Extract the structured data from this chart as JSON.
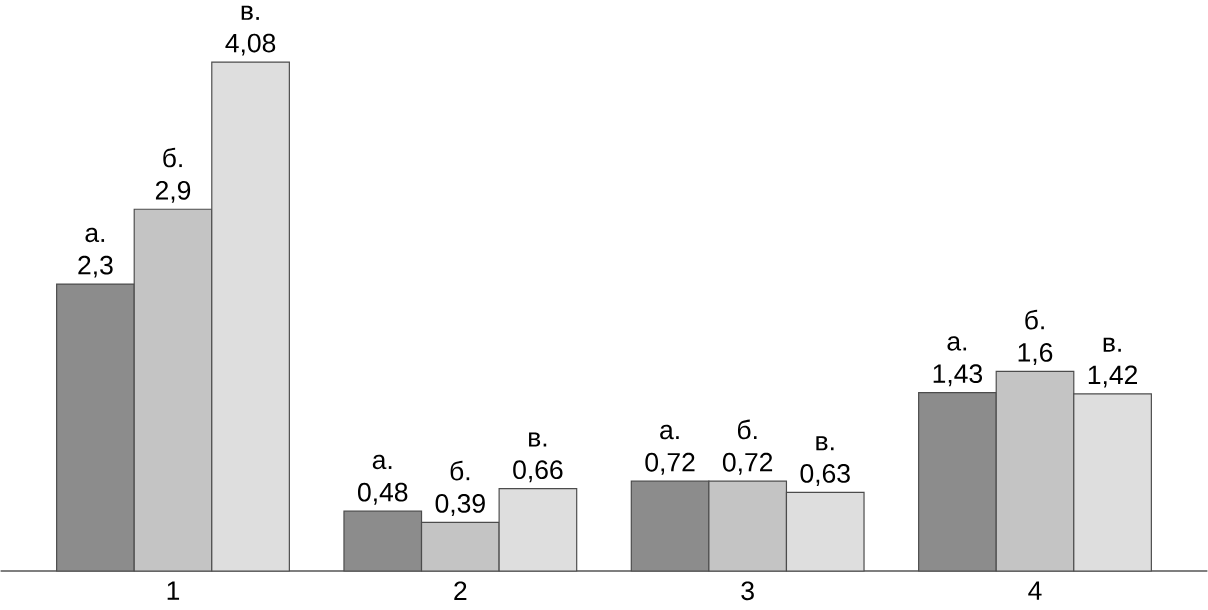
{
  "chart_data": {
    "type": "bar",
    "categories": [
      "1",
      "2",
      "3",
      "4"
    ],
    "series": [
      {
        "name": "а.",
        "color": "#8c8c8c",
        "values": [
          2.3,
          0.48,
          0.72,
          1.43
        ],
        "value_labels": [
          "2,3",
          "0,48",
          "0,72",
          "1,43"
        ]
      },
      {
        "name": "б.",
        "color": "#c4c4c4",
        "values": [
          2.9,
          0.39,
          0.72,
          1.6
        ],
        "value_labels": [
          "2,9",
          "0,39",
          "0,72",
          "1,6"
        ]
      },
      {
        "name": "в.",
        "color": "#dedede",
        "values": [
          4.08,
          0.66,
          0.63,
          1.42
        ],
        "value_labels": [
          "4,08",
          "0,66",
          "0,63",
          "1,42"
        ]
      }
    ]
  }
}
